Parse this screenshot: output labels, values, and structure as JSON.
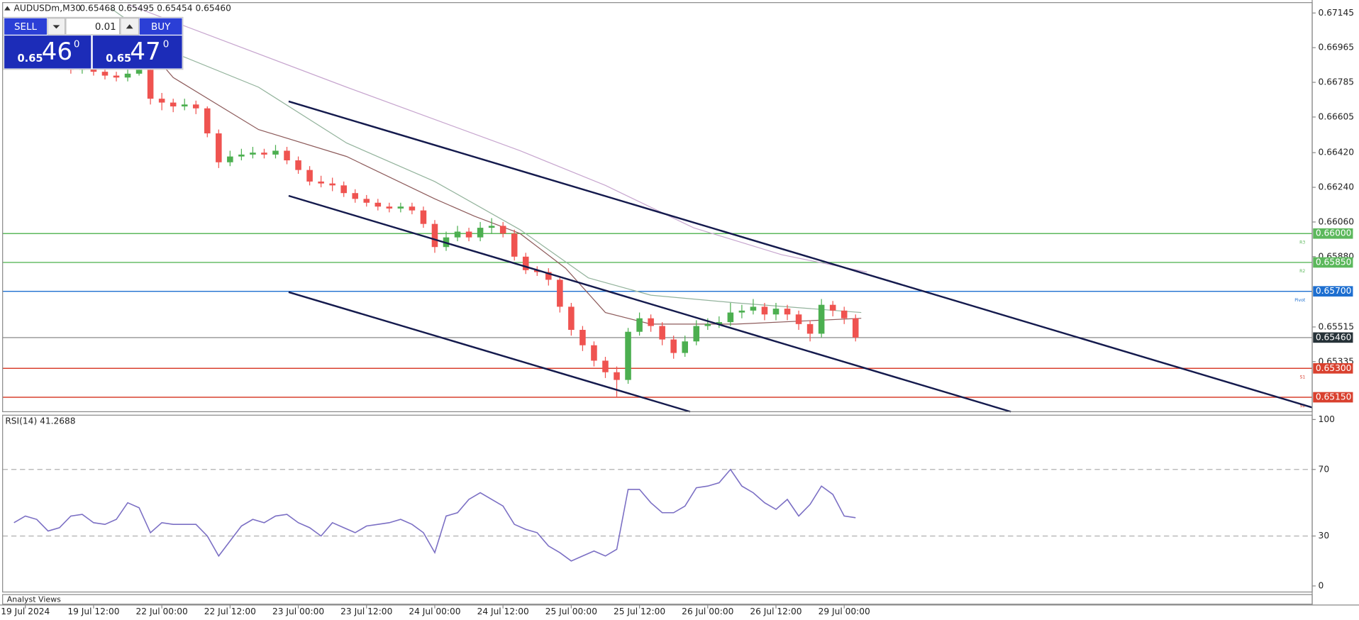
{
  "header": {
    "symbol": "AUDUSDm,M30",
    "ohlc": "0.65468 0.65495 0.65454 0.65460"
  },
  "trade_panel": {
    "sell": "SELL",
    "buy": "BUY",
    "volume": "0.01",
    "bid": {
      "big": "0.65",
      "pips": "46",
      "frac": "0"
    },
    "ask": {
      "big": "0.65",
      "pips": "47",
      "frac": "0"
    }
  },
  "footer": {
    "panel": "Analyst Views"
  },
  "chart_data": [
    {
      "type": "candlestick",
      "color_up": "#4caf50",
      "color_down": "#ef5350",
      "x": [
        2,
        4,
        6,
        8,
        10,
        12,
        14,
        16,
        18,
        20,
        22,
        24,
        26,
        28,
        30,
        32,
        34,
        36,
        38,
        40,
        42,
        44,
        46,
        48,
        50,
        52,
        54,
        56,
        58,
        60,
        62,
        64,
        66,
        68,
        70,
        72,
        74,
        76,
        78,
        80,
        82,
        84,
        86,
        88,
        90,
        92,
        94,
        96,
        98,
        100,
        102,
        104,
        106,
        108,
        110,
        112,
        114,
        116,
        118,
        120,
        122,
        124,
        126,
        128,
        130,
        132,
        134,
        136,
        138,
        140,
        142,
        144,
        146,
        148,
        150
      ],
      "open": [
        0.6693,
        0.6692,
        0.669,
        0.6689,
        0.6688,
        0.6687,
        0.6685,
        0.6686,
        0.6684,
        0.6682,
        0.6681,
        0.6683,
        0.6685,
        0.667,
        0.6668,
        0.6666,
        0.6667,
        0.6665,
        0.6652,
        0.6637,
        0.664,
        0.6641,
        0.6642,
        0.6641,
        0.6643,
        0.6638,
        0.6633,
        0.6627,
        0.6626,
        0.6625,
        0.6621,
        0.6618,
        0.6616,
        0.6614,
        0.6613,
        0.6614,
        0.6612,
        0.6605,
        0.6593,
        0.6598,
        0.6601,
        0.6598,
        0.6603,
        0.6604,
        0.66,
        0.6588,
        0.6581,
        0.658,
        0.6576,
        0.6562,
        0.655,
        0.6542,
        0.6534,
        0.6528,
        0.6524,
        0.6549,
        0.6556,
        0.6552,
        0.6545,
        0.6538,
        0.6544,
        0.6552,
        0.6553,
        0.6554,
        0.6559,
        0.656,
        0.6562,
        0.6558,
        0.6561,
        0.6558,
        0.6553,
        0.6548,
        0.6563,
        0.656,
        0.6556
      ],
      "high": [
        0.6696,
        0.6694,
        0.6692,
        0.6691,
        0.669,
        0.6689,
        0.6688,
        0.6688,
        0.6686,
        0.6684,
        0.6686,
        0.6688,
        0.6686,
        0.6673,
        0.667,
        0.667,
        0.6669,
        0.6666,
        0.6654,
        0.6643,
        0.6644,
        0.6645,
        0.6644,
        0.6646,
        0.6645,
        0.664,
        0.6635,
        0.663,
        0.6629,
        0.6627,
        0.6623,
        0.662,
        0.6618,
        0.6616,
        0.6616,
        0.6616,
        0.6614,
        0.6607,
        0.6601,
        0.6604,
        0.6603,
        0.6606,
        0.6608,
        0.6606,
        0.6602,
        0.659,
        0.6583,
        0.6582,
        0.6577,
        0.6564,
        0.6552,
        0.6544,
        0.6536,
        0.6531,
        0.6551,
        0.6559,
        0.6558,
        0.6554,
        0.6547,
        0.6547,
        0.6555,
        0.6556,
        0.6557,
        0.6564,
        0.6563,
        0.6566,
        0.6564,
        0.6564,
        0.6563,
        0.656,
        0.6555,
        0.6566,
        0.6565,
        0.6562,
        0.6558
      ],
      "low": [
        0.6689,
        0.6688,
        0.6687,
        0.6686,
        0.6685,
        0.6683,
        0.6683,
        0.6682,
        0.668,
        0.6679,
        0.6679,
        0.6682,
        0.6667,
        0.6664,
        0.6663,
        0.6664,
        0.6662,
        0.665,
        0.6634,
        0.6635,
        0.6638,
        0.6639,
        0.6639,
        0.6639,
        0.6636,
        0.6631,
        0.6625,
        0.6624,
        0.6622,
        0.6619,
        0.6616,
        0.6614,
        0.6612,
        0.6611,
        0.6611,
        0.661,
        0.6603,
        0.659,
        0.6591,
        0.6596,
        0.6596,
        0.6596,
        0.66,
        0.6598,
        0.6586,
        0.6579,
        0.6578,
        0.6573,
        0.6559,
        0.6547,
        0.6539,
        0.6531,
        0.6525,
        0.6515,
        0.6522,
        0.6547,
        0.6549,
        0.6542,
        0.6535,
        0.6536,
        0.6542,
        0.655,
        0.6551,
        0.6552,
        0.6556,
        0.6558,
        0.6555,
        0.6555,
        0.6555,
        0.655,
        0.6544,
        0.6546,
        0.6557,
        0.6553,
        0.6544
      ],
      "close": [
        0.6692,
        0.669,
        0.6689,
        0.6688,
        0.6687,
        0.6685,
        0.6686,
        0.6684,
        0.6682,
        0.6681,
        0.6683,
        0.6685,
        0.667,
        0.6668,
        0.6666,
        0.6667,
        0.6665,
        0.6652,
        0.6637,
        0.664,
        0.6641,
        0.6642,
        0.6641,
        0.6643,
        0.6638,
        0.6633,
        0.6627,
        0.6626,
        0.6625,
        0.6621,
        0.6618,
        0.6616,
        0.6614,
        0.6613,
        0.6614,
        0.6612,
        0.6605,
        0.6593,
        0.6598,
        0.6601,
        0.6598,
        0.6603,
        0.6604,
        0.66,
        0.6588,
        0.6581,
        0.658,
        0.6576,
        0.6562,
        0.655,
        0.6542,
        0.6534,
        0.6528,
        0.6524,
        0.6549,
        0.6556,
        0.6552,
        0.6545,
        0.6538,
        0.6544,
        0.6552,
        0.6553,
        0.6554,
        0.6559,
        0.656,
        0.6562,
        0.6558,
        0.6561,
        0.6558,
        0.6553,
        0.6548,
        0.6563,
        0.656,
        0.6556,
        0.6546
      ],
      "series": [
        {
          "color": "#c7a6cf",
          "x": [
            22,
            30,
            60.5,
            91,
            106,
            121.5,
            137,
            152
          ],
          "values": [
            0.6719,
            0.671,
            0.6676,
            0.6643,
            0.6625,
            0.6603,
            0.6589,
            0.658
          ]
        },
        {
          "color": "#93b39c",
          "x": [
            19,
            30,
            45,
            60.5,
            76,
            91,
            103,
            114,
            129,
            151
          ],
          "values": [
            0.6717,
            0.6694,
            0.6676,
            0.6647,
            0.6627,
            0.6602,
            0.6577,
            0.6568,
            0.6564,
            0.6559
          ]
        },
        {
          "color": "#8d5b5b",
          "x": [
            21,
            30,
            45,
            60.5,
            76,
            83,
            91,
            99,
            106,
            114,
            129,
            151
          ],
          "values": [
            0.6712,
            0.6681,
            0.6654,
            0.664,
            0.6618,
            0.6609,
            0.66,
            0.6582,
            0.6559,
            0.6553,
            0.6553,
            0.6556
          ]
        }
      ],
      "trendlines": [
        {
          "color": "#141a4d",
          "x": [
            50.3,
            230.3
          ],
          "values": [
            0.66686,
            0.65097
          ]
        },
        {
          "color": "#141a4d",
          "x": [
            50.3,
            177.3
          ],
          "values": [
            0.66196,
            0.65075
          ]
        },
        {
          "color": "#141a4d",
          "x": [
            50.3,
            120.9
          ],
          "values": [
            0.65696,
            0.65075
          ]
        }
      ],
      "levels": [
        {
          "value": 0.66,
          "label": "0.66000",
          "tag": "R3",
          "color": "#5cb85c"
        },
        {
          "value": 0.6585,
          "label": "0.65850",
          "tag": "R2",
          "color": "#5cb85c"
        },
        {
          "value": 0.657,
          "label": "0.65700",
          "tag": "Pivot",
          "color": "#1e6fd0"
        },
        {
          "value": 0.6546,
          "label": "0.65460",
          "color": "#9e9e9e",
          "box": "#263238"
        },
        {
          "value": 0.653,
          "label": "0.65300",
          "tag": "S1",
          "color": "#d9412f"
        },
        {
          "value": 0.6515,
          "label": "0.65150",
          "tag": "S2",
          "color": "#d9412f"
        }
      ],
      "xlim": [
        0,
        230.3
      ],
      "ylim": [
        0.65075,
        0.67199
      ],
      "yticks": [
        {
          "value": 0.67145,
          "label": "0.67145"
        },
        {
          "value": 0.66965,
          "label": "0.66965"
        },
        {
          "value": 0.66785,
          "label": "0.66785"
        },
        {
          "value": 0.66605,
          "label": "0.66605"
        },
        {
          "value": 0.6642,
          "label": "0.66420"
        },
        {
          "value": 0.6624,
          "label": "0.66240"
        },
        {
          "value": 0.6606,
          "label": "0.66060"
        },
        {
          "value": 0.6588,
          "label": "0.65880"
        },
        {
          "value": 0.65515,
          "label": "0.65515"
        },
        {
          "value": 0.65335,
          "label": "0.65335"
        }
      ],
      "xticks": [
        {
          "value": 4,
          "label": "19 Jul 2024"
        },
        {
          "value": 16,
          "label": "19 Jul 12:00"
        },
        {
          "value": 28,
          "label": "22 Jul 00:00"
        },
        {
          "value": 40,
          "label": "22 Jul 12:00"
        },
        {
          "value": 52,
          "label": "23 Jul 00:00"
        },
        {
          "value": 64,
          "label": "23 Jul 12:00"
        },
        {
          "value": 76,
          "label": "24 Jul 00:00"
        },
        {
          "value": 88,
          "label": "24 Jul 12:00"
        },
        {
          "value": 100,
          "label": "25 Jul 00:00"
        },
        {
          "value": 112,
          "label": "25 Jul 12:00"
        },
        {
          "value": 124,
          "label": "26 Jul 00:00"
        },
        {
          "value": 136,
          "label": "26 Jul 12:00"
        },
        {
          "value": 148,
          "label": "29 Jul 00:00"
        }
      ]
    },
    {
      "type": "line",
      "title": "RSI(14) 41.2688",
      "color": "#7b6fc4",
      "x": [
        2,
        4,
        6,
        8,
        10,
        12,
        14,
        16,
        18,
        20,
        22,
        24,
        26,
        28,
        30,
        32,
        34,
        36,
        38,
        40,
        42,
        44,
        46,
        48,
        50,
        52,
        54,
        56,
        58,
        60,
        62,
        64,
        66,
        68,
        70,
        72,
        74,
        76,
        78,
        80,
        82,
        84,
        86,
        88,
        90,
        92,
        94,
        96,
        98,
        100,
        102,
        104,
        106,
        108,
        110,
        112,
        114,
        116,
        118,
        120,
        122,
        124,
        126,
        128,
        130,
        132,
        134,
        136,
        138,
        140,
        142,
        144,
        146,
        148,
        150
      ],
      "values": [
        38,
        42,
        40,
        33,
        35,
        42,
        43,
        38,
        37,
        40,
        50,
        47,
        32,
        38,
        37,
        37,
        37,
        30,
        18,
        27,
        36,
        40,
        38,
        42,
        43,
        38,
        35,
        30,
        38,
        35,
        32,
        36,
        37,
        38,
        40,
        37,
        32,
        20,
        42,
        44,
        52,
        56,
        52,
        48,
        37,
        34,
        32,
        24,
        20,
        15,
        18,
        21,
        18,
        22,
        58,
        58,
        50,
        44,
        44,
        48,
        59,
        60,
        62,
        70,
        60,
        56,
        50,
        46,
        52,
        42,
        49,
        60,
        55,
        42,
        41
      ],
      "xlim": [
        0,
        230.3
      ],
      "ylim": [
        0,
        100
      ],
      "yticks": [
        0,
        30,
        70,
        100
      ],
      "dashed_levels": [
        30,
        70
      ]
    }
  ]
}
